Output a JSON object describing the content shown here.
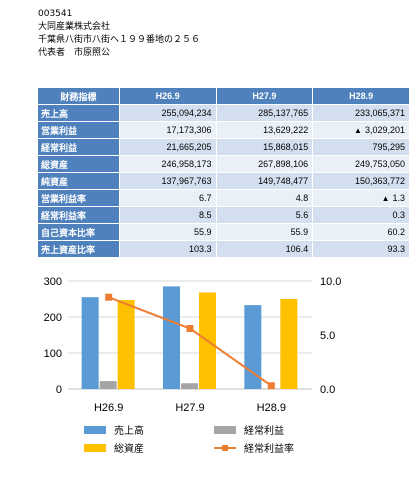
{
  "header": {
    "code": "003541",
    "company": "大同産業株式会社",
    "address": "千葉県八街市八街へ１９９番地の２５６",
    "representative": "代表者　市原照公"
  },
  "table": {
    "corner": "財務指標",
    "years": [
      "H26.9",
      "H27.9",
      "H28.9"
    ],
    "rows": [
      {
        "label": "売上高",
        "values": [
          "255,094,234",
          "285,137,765",
          "233,065,371"
        ],
        "neg": [
          false,
          false,
          false
        ]
      },
      {
        "label": "営業利益",
        "values": [
          "17,173,306",
          "13,629,222",
          "3,029,201"
        ],
        "neg": [
          false,
          false,
          true
        ]
      },
      {
        "label": "経常利益",
        "values": [
          "21,665,205",
          "15,868,015",
          "795,295"
        ],
        "neg": [
          false,
          false,
          false
        ]
      },
      {
        "label": "総資産",
        "values": [
          "246,958,173",
          "267,898,106",
          "249,753,050"
        ],
        "neg": [
          false,
          false,
          false
        ]
      },
      {
        "label": "純資産",
        "values": [
          "137,967,763",
          "149,748,477",
          "150,363,772"
        ],
        "neg": [
          false,
          false,
          false
        ]
      },
      {
        "label": "営業利益率",
        "values": [
          "6.7",
          "4.8",
          "1.3"
        ],
        "neg": [
          false,
          false,
          true
        ]
      },
      {
        "label": "経常利益率",
        "values": [
          "8.5",
          "5.6",
          "0.3"
        ],
        "neg": [
          false,
          false,
          false
        ]
      },
      {
        "label": "自己資本比率",
        "values": [
          "55.9",
          "55.9",
          "60.2"
        ],
        "neg": [
          false,
          false,
          false
        ]
      },
      {
        "label": "売上資産比率",
        "values": [
          "103.3",
          "106.4",
          "93.3"
        ],
        "neg": [
          false,
          false,
          false
        ]
      }
    ]
  },
  "chart_data": {
    "type": "bar",
    "categories": [
      "H26.9",
      "H27.9",
      "H28.9"
    ],
    "series": [
      {
        "name": "売上高",
        "values": [
          255,
          285,
          233
        ],
        "color": "#5b9bd5",
        "axis": "left",
        "kind": "bar"
      },
      {
        "name": "経常利益",
        "values": [
          22,
          16,
          1
        ],
        "color": "#a5a5a5",
        "axis": "left",
        "kind": "bar"
      },
      {
        "name": "総資産",
        "values": [
          247,
          268,
          250
        ],
        "color": "#ffc000",
        "axis": "left",
        "kind": "bar"
      },
      {
        "name": "経常利益率",
        "values": [
          8.5,
          5.6,
          0.3
        ],
        "color": "#ed7d31",
        "axis": "right",
        "kind": "line"
      }
    ],
    "ylim": [
      0,
      300
    ],
    "y2lim": [
      0,
      10
    ],
    "yticks": [
      "0",
      "100",
      "200",
      "300"
    ],
    "y2ticks": [
      "0.0",
      "5.0",
      "10.0"
    ],
    "legend_position": "bottom",
    "grid": true
  }
}
